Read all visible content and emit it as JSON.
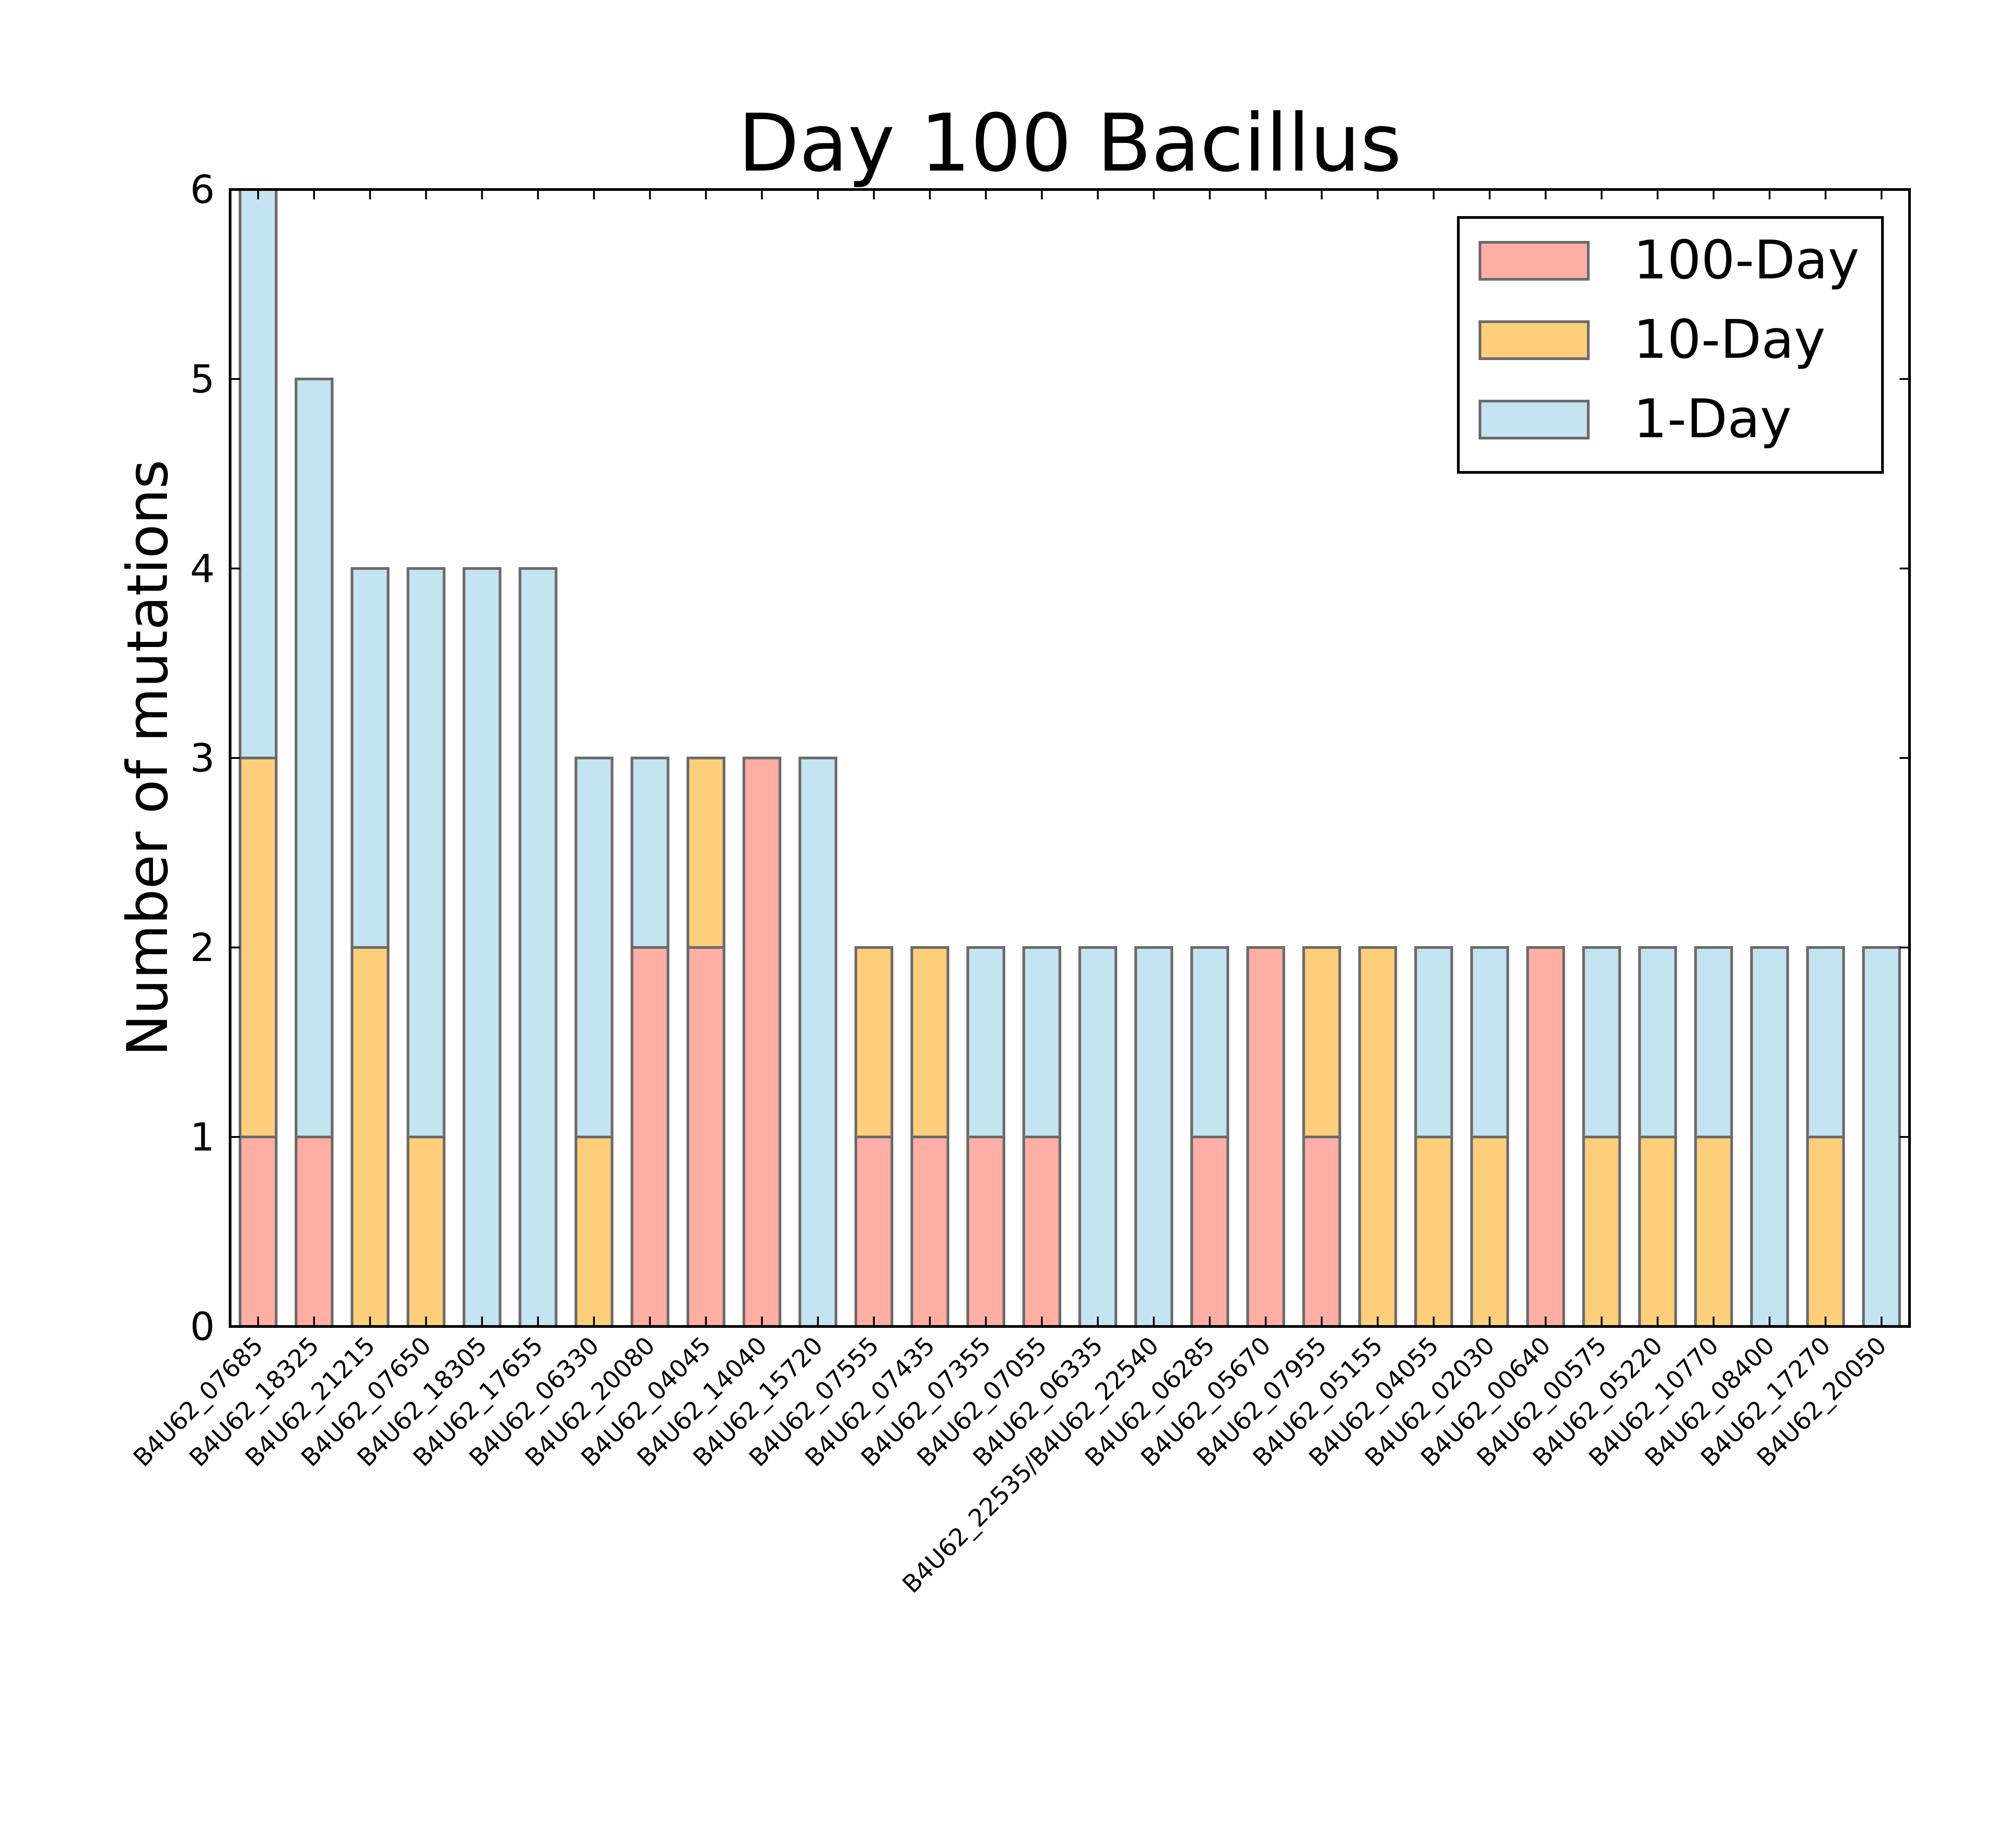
{
  "chart_data": {
    "type": "bar",
    "stacked": true,
    "title": "Day 100 Bacillus",
    "xlabel": "",
    "ylabel": "Number of mutations",
    "ylim": [
      0,
      6
    ],
    "yticks": [
      "0",
      "1",
      "2",
      "3",
      "4",
      "5",
      "6"
    ],
    "grid": false,
    "legend_position": "top-right",
    "categories": [
      "B4U62_07685",
      "B4U62_18325",
      "B4U62_21215",
      "B4U62_07650",
      "B4U62_18305",
      "B4U62_17655",
      "B4U62_06330",
      "B4U62_20080",
      "B4U62_04045",
      "B4U62_14040",
      "B4U62_15720",
      "B4U62_07555",
      "B4U62_07435",
      "B4U62_07355",
      "B4U62_07055",
      "B4U62_06335",
      "B4U62_22535/B4U62_22540",
      "B4U62_06285",
      "B4U62_05670",
      "B4U62_07955",
      "B4U62_05155",
      "B4U62_04055",
      "B4U62_02030",
      "B4U62_00640",
      "B4U62_00575",
      "B4U62_05220",
      "B4U62_10770",
      "B4U62_08400",
      "B4U62_17270",
      "B4U62_20050"
    ],
    "series": [
      {
        "name": "100-Day",
        "color": "#ffaea4",
        "values": [
          1,
          1,
          0,
          0,
          0,
          0,
          0,
          2,
          2,
          3,
          0,
          1,
          1,
          1,
          1,
          0,
          0,
          1,
          2,
          1,
          0,
          0,
          0,
          2,
          0,
          0,
          0,
          0,
          0,
          0
        ]
      },
      {
        "name": "10-Day",
        "color": "#ffce7a",
        "values": [
          2,
          0,
          2,
          1,
          0,
          0,
          1,
          0,
          1,
          0,
          0,
          1,
          1,
          0,
          0,
          0,
          0,
          0,
          0,
          1,
          2,
          1,
          1,
          0,
          1,
          1,
          1,
          0,
          1,
          0
        ]
      },
      {
        "name": "1-Day",
        "color": "#c4e4f2",
        "values": [
          3,
          4,
          2,
          3,
          4,
          4,
          2,
          1,
          0,
          0,
          3,
          0,
          0,
          1,
          1,
          2,
          2,
          1,
          0,
          0,
          0,
          1,
          1,
          0,
          1,
          1,
          1,
          2,
          1,
          2
        ]
      }
    ]
  }
}
